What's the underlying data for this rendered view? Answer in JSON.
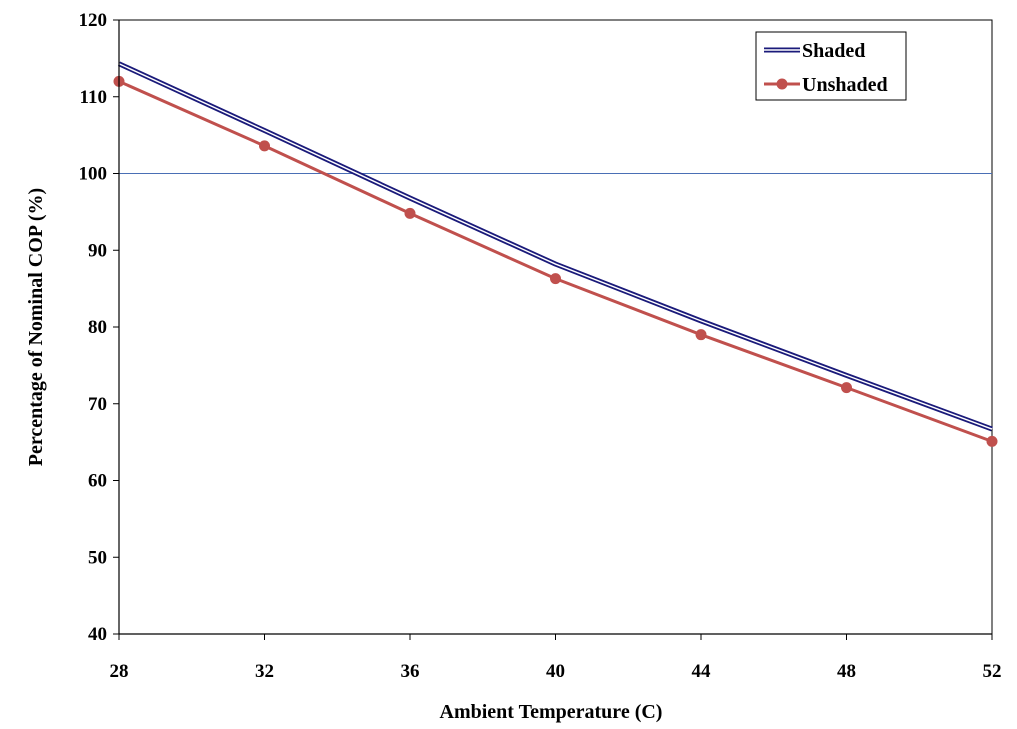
{
  "chart_data": {
    "type": "line",
    "title": "",
    "xlabel": "Ambient Temperature (C)",
    "ylabel": "Percentage of Nominal COP (%)",
    "xlim": [
      28,
      52
    ],
    "ylim": [
      40,
      120
    ],
    "xticks": [
      28,
      32,
      36,
      40,
      44,
      48,
      52
    ],
    "yticks": [
      40,
      50,
      60,
      70,
      80,
      90,
      100,
      110,
      120
    ],
    "reference_line": {
      "y": 100,
      "color": "#4a6fb5"
    },
    "grid": false,
    "legend_position": "top-right",
    "series": [
      {
        "name": "Shaded",
        "color": "#1a1a7a",
        "marker": "none",
        "style": "double",
        "x": [
          28,
          32,
          36,
          40,
          44,
          48,
          52
        ],
        "y": [
          114.3,
          105.6,
          96.8,
          88.2,
          80.8,
          73.7,
          66.7
        ]
      },
      {
        "name": "Unshaded",
        "color": "#c0504d",
        "marker": "circle",
        "style": "solid",
        "x": [
          28,
          32,
          36,
          40,
          44,
          48,
          52
        ],
        "y": [
          112.0,
          103.6,
          94.8,
          86.3,
          79.0,
          72.1,
          65.1
        ]
      }
    ]
  }
}
